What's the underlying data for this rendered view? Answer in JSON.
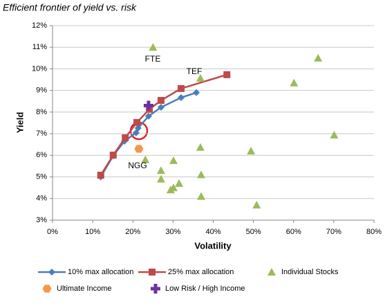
{
  "chart_data": {
    "type": "scatter",
    "title": "Efficient frontier of yield vs. risk",
    "x_label": "Volatility",
    "y_label": "Yield",
    "xlim": [
      0,
      80
    ],
    "xticks": [
      {
        "value": 0,
        "label": "0%"
      },
      {
        "value": 10,
        "label": "10%"
      },
      {
        "value": 20,
        "label": "20%"
      },
      {
        "value": 30,
        "label": "30%"
      },
      {
        "value": 40,
        "label": "40%"
      },
      {
        "value": 50,
        "label": "50%"
      },
      {
        "value": 60,
        "label": "60%"
      },
      {
        "value": 70,
        "label": "70%"
      },
      {
        "value": 80,
        "label": "80%"
      }
    ],
    "ylim": [
      3,
      12
    ],
    "yticks": [
      {
        "value": 3,
        "label": "3%"
      },
      {
        "value": 4,
        "label": "4%"
      },
      {
        "value": 5,
        "label": "5%"
      },
      {
        "value": 6,
        "label": "6%"
      },
      {
        "value": 7,
        "label": "7%"
      },
      {
        "value": 8,
        "label": "8%"
      },
      {
        "value": 9,
        "label": "9%"
      },
      {
        "value": 10,
        "label": "10%"
      },
      {
        "value": 11,
        "label": "11%"
      },
      {
        "value": 12,
        "label": "12%"
      }
    ],
    "grid": true,
    "legend": "bottom",
    "series": [
      {
        "name": "10% max allocation",
        "color": "#4a7ebb",
        "marker": "diamond",
        "line": true,
        "x": [
          12,
          15.1,
          17.9,
          20.8,
          21.3,
          23.9,
          27,
          32,
          35.8
        ],
        "values": [
          5.0,
          5.98,
          6.65,
          7.04,
          7.26,
          7.81,
          8.22,
          8.67,
          8.9
        ]
      },
      {
        "name": "25% max allocation",
        "color": "#be4b48",
        "marker": "square",
        "line": true,
        "x": [
          12,
          15.1,
          18.1,
          21,
          24.1,
          27,
          32,
          43.4
        ],
        "values": [
          5.08,
          6.01,
          6.81,
          7.52,
          8.13,
          8.54,
          9.09,
          9.73
        ]
      },
      {
        "name": "Individual Stocks",
        "color": "#9bbb59",
        "marker": "triangle",
        "line": false,
        "x": [
          25,
          36.8,
          66.1,
          60.1,
          70.1,
          36.8,
          49.4,
          23.1,
          30.1,
          27,
          37,
          27,
          31.5,
          30.1,
          29.4,
          37,
          50.8
        ],
        "values": [
          11.0,
          9.57,
          10.5,
          9.35,
          6.94,
          6.37,
          6.2,
          5.8,
          5.76,
          5.3,
          5.1,
          4.9,
          4.7,
          4.5,
          4.4,
          4.1,
          3.7
        ]
      },
      {
        "name": "Ultimate Income",
        "color": "#f79646",
        "marker": "hexagon",
        "line": false,
        "x": [
          21.5
        ],
        "values": [
          6.3
        ]
      },
      {
        "name": "Low Risk / High Income",
        "color": "#7030a0",
        "marker": "plus",
        "line": false,
        "x": [
          23.9
        ],
        "values": [
          8.3
        ]
      }
    ],
    "annotations": [
      "FTE",
      "TEF",
      "NGG"
    ]
  }
}
